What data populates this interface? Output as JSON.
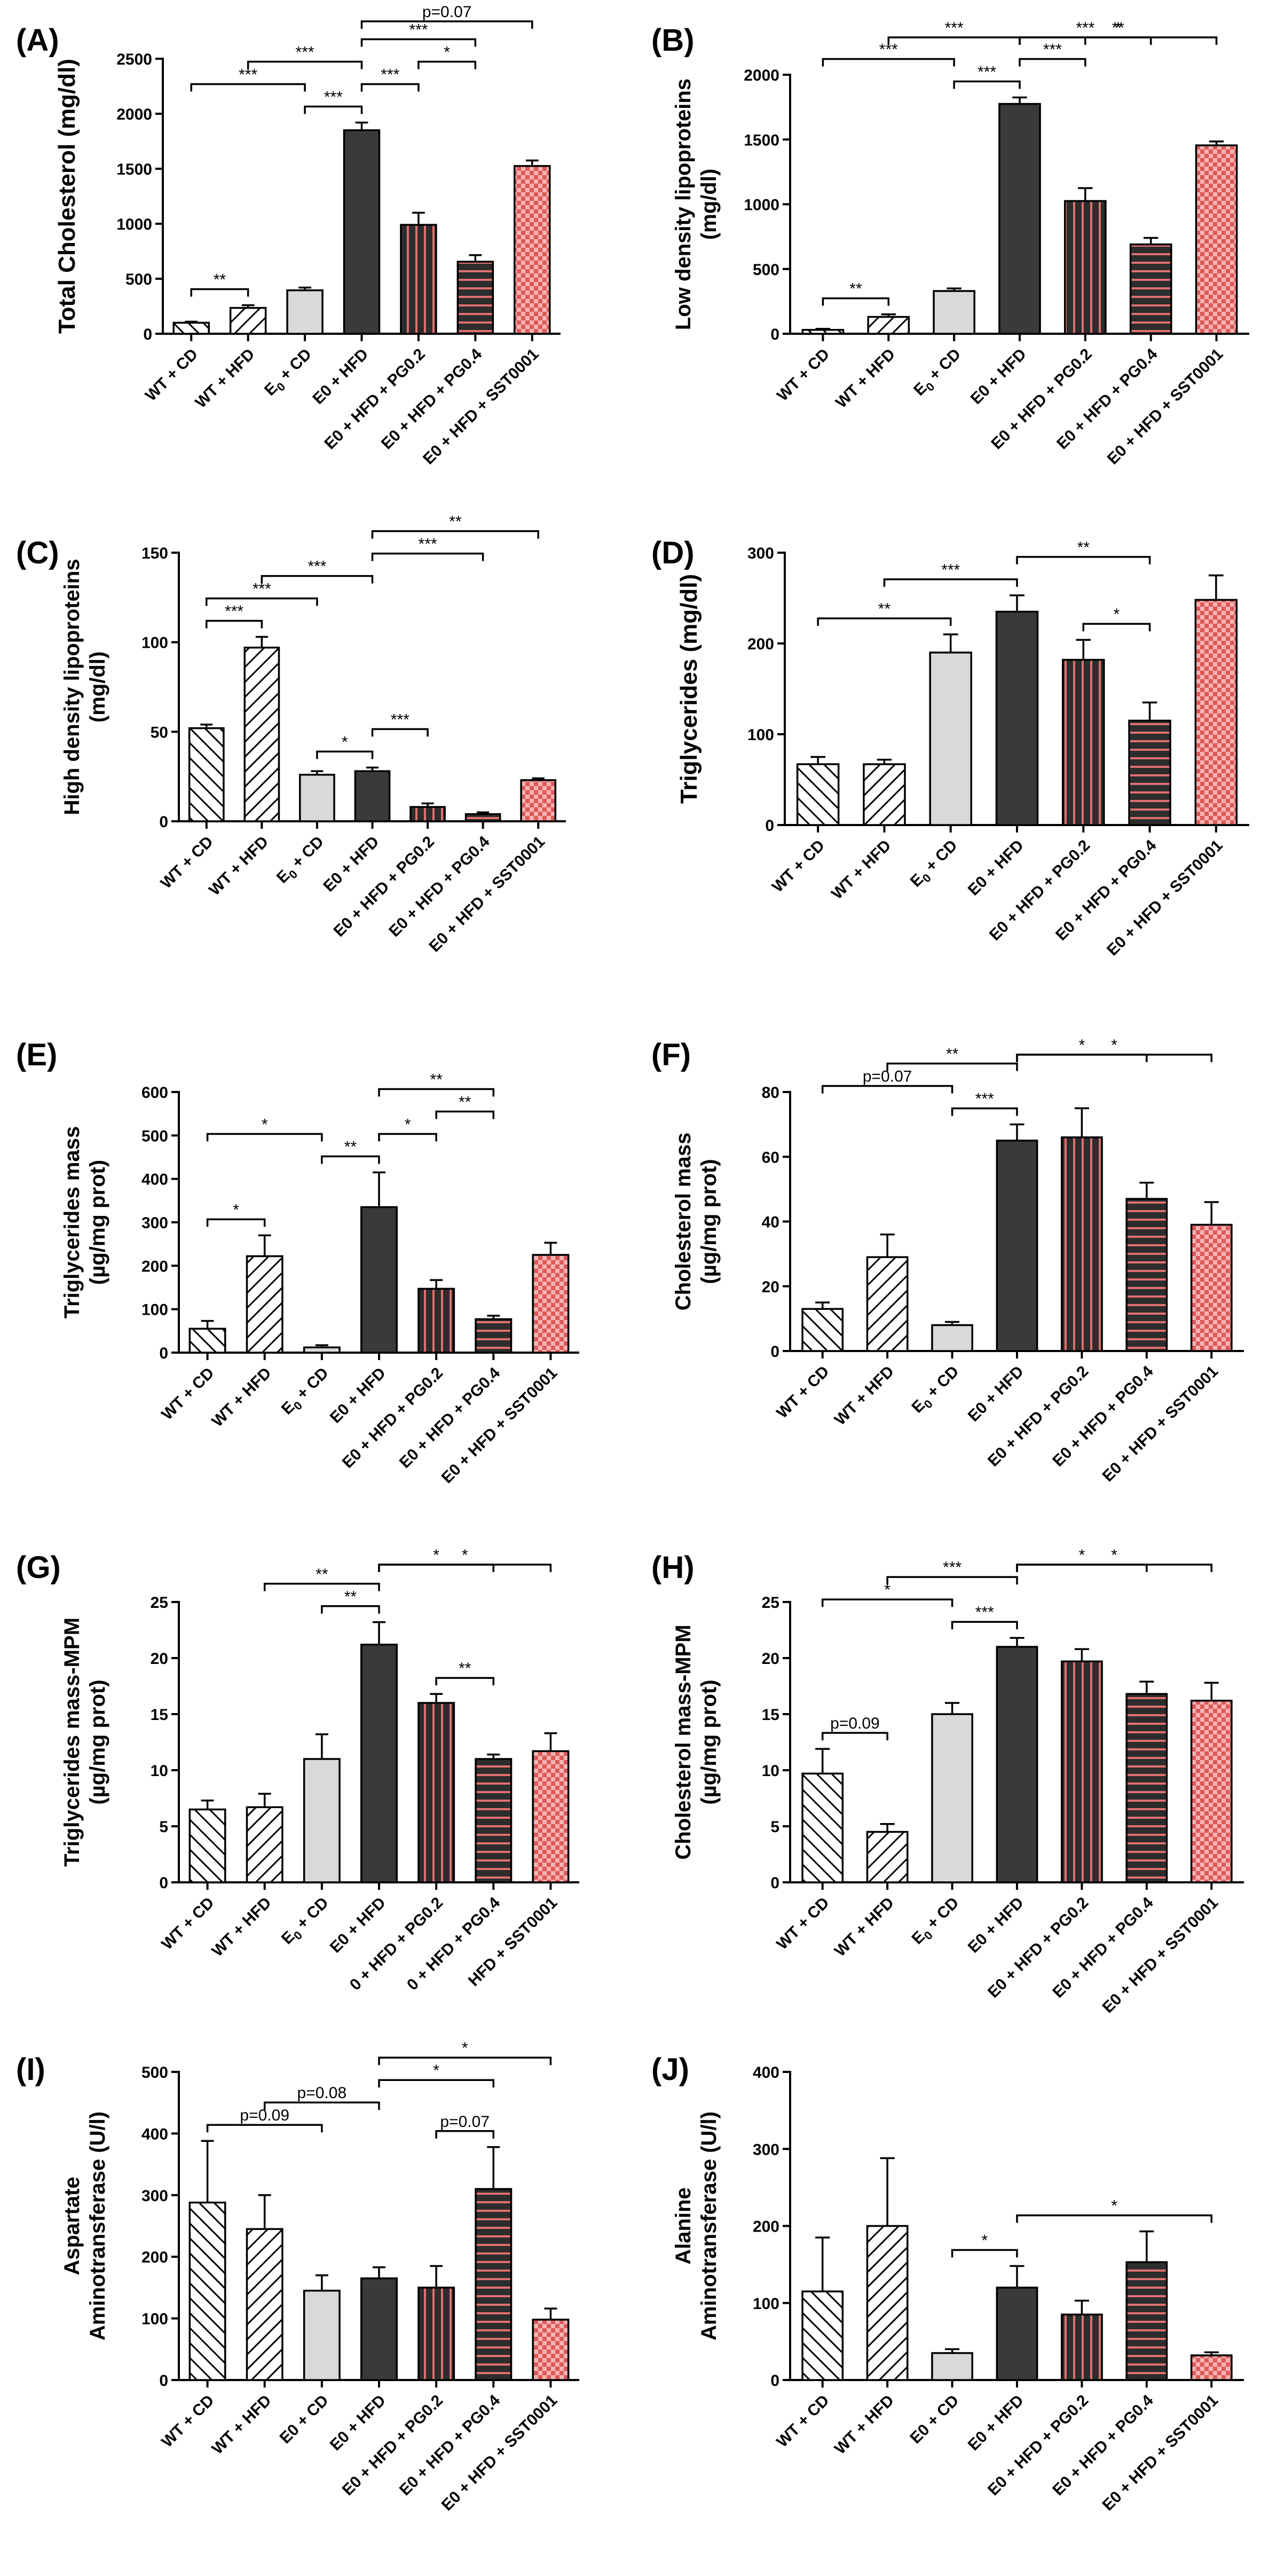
{
  "figure": {
    "groups": [
      "WT + CD",
      "WT + HFD",
      "E0 + CD",
      "E0 + HFD",
      "E0 + HFD + PG0.2",
      "E0 + HFD + PG0.4",
      "E0 + HFD + SST0001"
    ],
    "colors": {
      "hatch_stroke": "#000000",
      "light_gray": "#d9d9d9",
      "dark_gray": "#3a3a3a",
      "stripe_red": "#e07070",
      "check_pink": "#f4a8a8",
      "check_red": "#e06060"
    }
  },
  "chart_data": [
    {
      "id": "A",
      "label": "(A)",
      "type": "bar",
      "ylabel": [
        "Total Cholesterol (mg/dl)"
      ],
      "categories": [
        "WT + CD",
        "WT + HFD",
        "E₀ + CD",
        "E0 + HFD",
        "E0 + HFD + PG0.2",
        "E0 + HFD + PG0.4",
        "E0 + HFD + SST0001"
      ],
      "values": [
        100,
        235,
        395,
        1850,
        990,
        655,
        1525
      ],
      "errors": [
        10,
        25,
        25,
        70,
        110,
        60,
        50
      ],
      "ylim": [
        0,
        2500
      ],
      "yticks": [
        0,
        500,
        1000,
        1500,
        2000,
        2500
      ],
      "brackets": [
        {
          "from": 0,
          "to": 1,
          "label": "**"
        },
        {
          "from": 0,
          "to": 2,
          "label": "***"
        },
        {
          "from": 1,
          "to": 3,
          "label": "***"
        },
        {
          "from": 2,
          "to": 3,
          "label": "***"
        },
        {
          "from": 3,
          "to": 4,
          "label": "***"
        },
        {
          "from": 3,
          "to": 5,
          "label": "***"
        },
        {
          "from": 3,
          "to": 6,
          "label": "p=0.07"
        },
        {
          "from": 4,
          "to": 5,
          "label": "*"
        }
      ]
    },
    {
      "id": "B",
      "label": "(B)",
      "type": "bar",
      "ylabel": [
        "Low density lipoproteins",
        "(mg/dl)"
      ],
      "categories": [
        "WT + CD",
        "WT + HFD",
        "E₀ + CD",
        "E0 + HFD",
        "E0 + HFD + PG0.2",
        "E0 + HFD + PG0.4",
        "E0 + HFD + SST0001"
      ],
      "values": [
        30,
        130,
        330,
        1775,
        1025,
        690,
        1455
      ],
      "errors": [
        8,
        20,
        20,
        50,
        100,
        50,
        30
      ],
      "ylim": [
        0,
        2000
      ],
      "yticks": [
        0,
        500,
        1000,
        1500,
        2000
      ],
      "brackets": [
        {
          "from": 0,
          "to": 1,
          "label": "**"
        },
        {
          "from": 0,
          "to": 2,
          "label": "***"
        },
        {
          "from": 1,
          "to": 3,
          "label": "***"
        },
        {
          "from": 2,
          "to": 3,
          "label": "***"
        },
        {
          "from": 3,
          "to": 4,
          "label": "***"
        },
        {
          "from": 3,
          "to": 5,
          "label": "***"
        },
        {
          "from": 3,
          "to": 6,
          "label": "**"
        },
        {
          "from": 4,
          "to": 5,
          "label": "*"
        }
      ]
    },
    {
      "id": "C",
      "label": "(C)",
      "type": "bar",
      "ylabel": [
        "High density lipoproteins",
        "(mg/dl)"
      ],
      "categories": [
        "WT + CD",
        "WT + HFD",
        "E₀ + CD",
        "E0 + HFD",
        "E0 + HFD + PG0.2",
        "E0 + HFD + PG0.4",
        "E0 + HFD + SST0001"
      ],
      "values": [
        52,
        97,
        26,
        28,
        8,
        4,
        23
      ],
      "errors": [
        2,
        6,
        2,
        2,
        2,
        1,
        1
      ],
      "ylim": [
        0,
        150
      ],
      "yticks": [
        0,
        50,
        100,
        150
      ],
      "brackets": [
        {
          "from": 0,
          "to": 1,
          "label": "***"
        },
        {
          "from": 0,
          "to": 2,
          "label": "***"
        },
        {
          "from": 1,
          "to": 3,
          "label": "***"
        },
        {
          "from": 2,
          "to": 3,
          "label": "*"
        },
        {
          "from": 3,
          "to": 4,
          "label": "***"
        },
        {
          "from": 3,
          "to": 5,
          "label": "***"
        },
        {
          "from": 3,
          "to": 6,
          "label": "**"
        }
      ]
    },
    {
      "id": "D",
      "label": "(D)",
      "type": "bar",
      "ylabel": [
        "Triglycerides (mg/dl)"
      ],
      "categories": [
        "WT + CD",
        "WT + HFD",
        "E₀ + CD",
        "E0 + HFD",
        "E0 + HFD + PG0.2",
        "E0 + HFD + PG0.4",
        "E0 + HFD + SST0001"
      ],
      "values": [
        67,
        67,
        190,
        235,
        182,
        115,
        248
      ],
      "errors": [
        8,
        5,
        20,
        18,
        22,
        20,
        27
      ],
      "ylim": [
        0,
        300
      ],
      "yticks": [
        0,
        100,
        200,
        300
      ],
      "brackets": [
        {
          "from": 0,
          "to": 2,
          "label": "**"
        },
        {
          "from": 1,
          "to": 3,
          "label": "***"
        },
        {
          "from": 3,
          "to": 5,
          "label": "**"
        },
        {
          "from": 4,
          "to": 5,
          "label": "*"
        }
      ]
    },
    {
      "id": "E",
      "label": "(E)",
      "type": "bar",
      "ylabel": [
        "Triglycerides mass",
        "(µg/mg prot)"
      ],
      "categories": [
        "WT + CD",
        "WT + HFD",
        "E₀ + CD",
        "E0 + HFD",
        "E0 + HFD + PG0.2",
        "E0 + HFD + PG0.4",
        "E0 + HFD + SST0001"
      ],
      "values": [
        55,
        222,
        12,
        335,
        147,
        77,
        225
      ],
      "errors": [
        18,
        48,
        5,
        80,
        20,
        8,
        28
      ],
      "ylim": [
        0,
        600
      ],
      "yticks": [
        0,
        100,
        200,
        300,
        400,
        500,
        600
      ],
      "brackets": [
        {
          "from": 0,
          "to": 1,
          "label": "*"
        },
        {
          "from": 0,
          "to": 2,
          "label": "*"
        },
        {
          "from": 2,
          "to": 3,
          "label": "**"
        },
        {
          "from": 3,
          "to": 4,
          "label": "*"
        },
        {
          "from": 3,
          "to": 5,
          "label": "**"
        },
        {
          "from": 4,
          "to": 5,
          "label": "**"
        }
      ]
    },
    {
      "id": "F",
      "label": "(F)",
      "type": "bar",
      "ylabel": [
        "Cholesterol mass",
        "(µg/mg prot)"
      ],
      "categories": [
        "WT + CD",
        "WT + HFD",
        "E₀ + CD",
        "E0 + HFD",
        "E0 + HFD + PG0.2",
        "E0 + HFD + PG0.4",
        "E0 + HFD + SST0001"
      ],
      "values": [
        13,
        29,
        8,
        65,
        66,
        47,
        39
      ],
      "errors": [
        2,
        7,
        1,
        5,
        9,
        5,
        7
      ],
      "ylim": [
        0,
        80
      ],
      "yticks": [
        0,
        20,
        40,
        60,
        80
      ],
      "brackets": [
        {
          "from": 0,
          "to": 2,
          "label": "p=0.07"
        },
        {
          "from": 1,
          "to": 3,
          "label": "**"
        },
        {
          "from": 2,
          "to": 3,
          "label": "***"
        },
        {
          "from": 3,
          "to": 5,
          "label": "*"
        },
        {
          "from": 3,
          "to": 6,
          "label": "*"
        }
      ]
    },
    {
      "id": "G",
      "label": "(G)",
      "type": "bar",
      "ylabel": [
        "Triglycerides mass-MPM",
        "(µg/mg prot)"
      ],
      "categories": [
        "WT + CD",
        "WT + HFD",
        "E₀ + CD",
        "E0 + HFD",
        " 0 + HFD + PG0.2",
        " 0 + HFD + PG0.4",
        "HFD + SST0001"
      ],
      "values": [
        6.5,
        6.7,
        11,
        21.2,
        16,
        11,
        11.7
      ],
      "errors": [
        0.8,
        1.2,
        2.2,
        2,
        0.8,
        0.4,
        1.6
      ],
      "ylim": [
        0,
        25
      ],
      "yticks": [
        0,
        5,
        10,
        15,
        20,
        25
      ],
      "brackets": [
        {
          "from": 1,
          "to": 3,
          "label": "**"
        },
        {
          "from": 2,
          "to": 3,
          "label": "**"
        },
        {
          "from": 3,
          "to": 5,
          "label": "*"
        },
        {
          "from": 3,
          "to": 6,
          "label": "*"
        },
        {
          "from": 4,
          "to": 5,
          "label": "**"
        }
      ]
    },
    {
      "id": "H",
      "label": "(H)",
      "type": "bar",
      "ylabel": [
        "Cholesterol mass-MPM",
        "(µg/mg prot)"
      ],
      "categories": [
        "WT + CD",
        "WT + HFD",
        "E₀ + CD",
        "E0 + HFD",
        "E0 + HFD + PG0.2",
        "E0 + HFD + PG0.4",
        "E0 + HFD + SST0001"
      ],
      "values": [
        9.7,
        4.5,
        15,
        21,
        19.7,
        16.8,
        16.2
      ],
      "errors": [
        2.2,
        0.7,
        1,
        0.8,
        1.1,
        1.1,
        1.6
      ],
      "ylim": [
        0,
        25
      ],
      "yticks": [
        0,
        5,
        10,
        15,
        20,
        25
      ],
      "brackets": [
        {
          "from": 0,
          "to": 1,
          "label": "p=0.09"
        },
        {
          "from": 0,
          "to": 2,
          "label": "*"
        },
        {
          "from": 1,
          "to": 3,
          "label": "***"
        },
        {
          "from": 2,
          "to": 3,
          "label": "***"
        },
        {
          "from": 3,
          "to": 5,
          "label": "*"
        },
        {
          "from": 3,
          "to": 6,
          "label": "*"
        }
      ]
    },
    {
      "id": "I",
      "label": "(I)",
      "type": "bar",
      "ylabel": [
        "Aspartate",
        "Aminotransferase (U/l)"
      ],
      "categories": [
        "WT + CD",
        "WT + HFD",
        "E0 + CD",
        "E0 + HFD",
        "E0 + HFD + PG0.2",
        "E0 + HFD + PG0.4",
        "E0 + HFD + SST0001"
      ],
      "values": [
        288,
        245,
        145,
        165,
        150,
        310,
        98
      ],
      "errors": [
        100,
        55,
        25,
        18,
        35,
        68,
        18
      ],
      "ylim": [
        0,
        500
      ],
      "yticks": [
        0,
        100,
        200,
        300,
        400,
        500
      ],
      "brackets": [
        {
          "from": 0,
          "to": 2,
          "label": "p=0.09"
        },
        {
          "from": 1,
          "to": 3,
          "label": "p=0.08"
        },
        {
          "from": 3,
          "to": 5,
          "label": "*"
        },
        {
          "from": 3,
          "to": 6,
          "label": "*"
        },
        {
          "from": 4,
          "to": 5,
          "label": "p=0.07"
        }
      ]
    },
    {
      "id": "J",
      "label": "(J)",
      "type": "bar",
      "ylabel": [
        "Alanine",
        "Aminotransferase (U/l)"
      ],
      "categories": [
        "WT + CD",
        "WT + HFD",
        "E0 + CD",
        "E0 + HFD",
        "E0 + HFD + PG0.2",
        "E0 + HFD + PG0.4",
        "E0 + HFD + SST0001"
      ],
      "values": [
        115,
        200,
        35,
        120,
        85,
        153,
        32
      ],
      "errors": [
        70,
        88,
        5,
        28,
        18,
        40,
        4
      ],
      "ylim": [
        0,
        400
      ],
      "yticks": [
        0,
        100,
        200,
        300,
        400
      ],
      "brackets": [
        {
          "from": 2,
          "to": 3,
          "label": "*"
        },
        {
          "from": 3,
          "to": 6,
          "label": "*"
        }
      ]
    }
  ]
}
